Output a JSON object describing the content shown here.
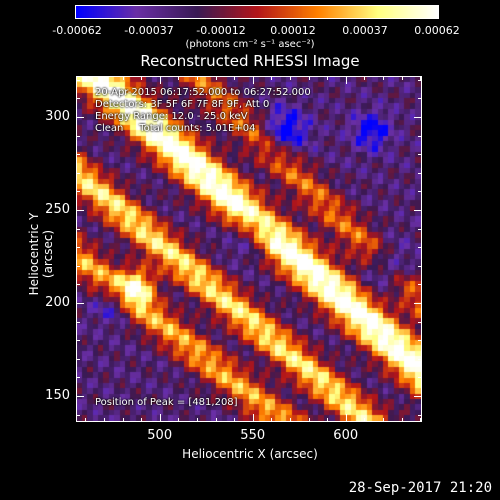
{
  "chart_data": {
    "type": "heatmap",
    "title": "Reconstructed RHESSI Image",
    "xlabel": "Heliocentric X (arcsec)",
    "ylabel": "Heliocentric Y (arcsec)",
    "xlim": [
      455,
      641
    ],
    "ylim": [
      136,
      322
    ],
    "xticks": [
      "500",
      "550",
      "600"
    ],
    "yticks": [
      "150",
      "200",
      "250",
      "300"
    ],
    "xtick_values": [
      500,
      550,
      600
    ],
    "ytick_values": [
      150,
      200,
      250,
      300
    ],
    "colorbar": {
      "ticks": [
        "-0.00062",
        "-0.00037",
        "-0.00012",
        "0.00012",
        "0.00037",
        "0.00062"
      ],
      "range": [
        -0.00062,
        0.00062
      ],
      "unit": "(photons cm⁻² s⁻¹ asec⁻²)",
      "colormap": [
        "#0000ff",
        "#6a2fa6",
        "#3a1a55",
        "#b3151a",
        "#ff8000",
        "#ffff80",
        "#ffffff"
      ]
    },
    "annotations": {
      "time_range": "20-Apr-2015 06:17:52.000 to 06:27:52.000",
      "detectors": "Detectors: 3F 5F 6F 7F 8F 9F, Att 0",
      "energy": "Energy Range: 12.0 - 25.0 keV",
      "method": "Clean     Total counts: 5.01E+04",
      "peak": "Position of Peak = [481,208]"
    }
  },
  "footer": {
    "timestamp": "28-Sep-2017 21:20"
  }
}
